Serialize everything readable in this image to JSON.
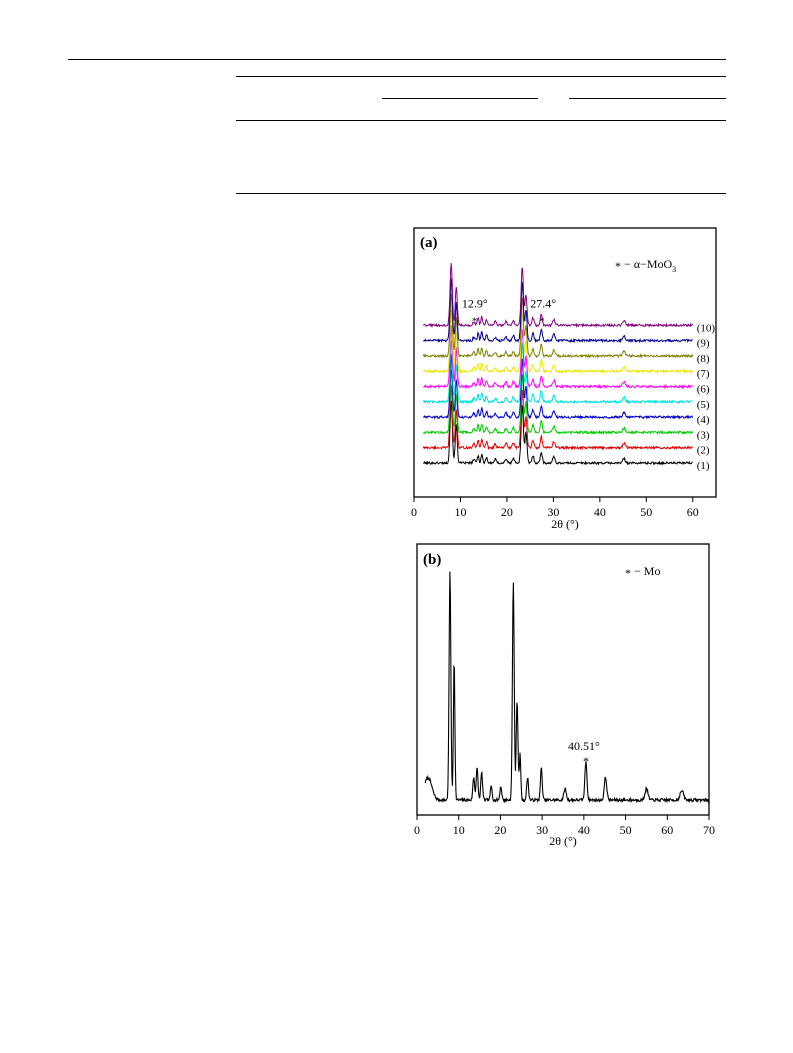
{
  "page": {
    "background": "#ffffff"
  },
  "chart_data": [
    {
      "type": "line",
      "panel_label": "(a)",
      "title": "",
      "xlabel": "2θ (°)",
      "ylabel": "",
      "xlim": [
        0,
        65
      ],
      "x_ticks": [
        0,
        10,
        20,
        30,
        40,
        50,
        60
      ],
      "grid": false,
      "legend": {
        "marker": "*",
        "text": "− α−MoO",
        "subscript": "3",
        "placement": "top-right"
      },
      "annotations": [
        {
          "text": "12.9°",
          "x": 12.9,
          "series": "(10)"
        },
        {
          "text": "27.4°",
          "x": 27.4,
          "series": "(10)"
        }
      ],
      "peaks": [
        {
          "x": 8.0,
          "h": 1.0,
          "w": 0.35
        },
        {
          "x": 9.1,
          "h": 0.62,
          "w": 0.3
        },
        {
          "x": 12.9,
          "h": 0.06,
          "w": 0.3
        },
        {
          "x": 13.8,
          "h": 0.12,
          "w": 0.25
        },
        {
          "x": 14.6,
          "h": 0.14,
          "w": 0.25
        },
        {
          "x": 15.6,
          "h": 0.1,
          "w": 0.25
        },
        {
          "x": 17.5,
          "h": 0.06,
          "w": 0.3
        },
        {
          "x": 19.8,
          "h": 0.07,
          "w": 0.3
        },
        {
          "x": 21.4,
          "h": 0.08,
          "w": 0.3
        },
        {
          "x": 23.3,
          "h": 0.95,
          "w": 0.35
        },
        {
          "x": 24.1,
          "h": 0.5,
          "w": 0.3
        },
        {
          "x": 25.6,
          "h": 0.12,
          "w": 0.3
        },
        {
          "x": 27.4,
          "h": 0.18,
          "w": 0.3
        },
        {
          "x": 30.1,
          "h": 0.1,
          "w": 0.35
        },
        {
          "x": 45.2,
          "h": 0.07,
          "w": 0.4
        }
      ],
      "series": [
        {
          "name": "(1)",
          "color": "#000000"
        },
        {
          "name": "(2)",
          "color": "#e00000"
        },
        {
          "name": "(3)",
          "color": "#00cc00"
        },
        {
          "name": "(4)",
          "color": "#0000c8"
        },
        {
          "name": "(5)",
          "color": "#00e0e0"
        },
        {
          "name": "(6)",
          "color": "#ff00ff"
        },
        {
          "name": "(7)",
          "color": "#e8e800"
        },
        {
          "name": "(8)",
          "color": "#808000"
        },
        {
          "name": "(9)",
          "color": "#000090"
        },
        {
          "name": "(10)",
          "color": "#800080"
        }
      ]
    },
    {
      "type": "line",
      "panel_label": "(b)",
      "title": "",
      "xlabel": "2θ (°)",
      "ylabel": "",
      "xlim": [
        0,
        70
      ],
      "x_ticks": [
        0,
        10,
        20,
        30,
        40,
        50,
        60,
        70
      ],
      "grid": false,
      "legend": {
        "marker": "*",
        "text": "− Mo",
        "placement": "top-right"
      },
      "annotations": [
        {
          "text": "40.51°",
          "x": 40.51
        }
      ],
      "peaks": [
        {
          "x": 2.8,
          "h": 0.08,
          "w": 1.2
        },
        {
          "x": 7.9,
          "h": 1.0,
          "w": 0.3
        },
        {
          "x": 8.9,
          "h": 0.62,
          "w": 0.25
        },
        {
          "x": 13.6,
          "h": 0.1,
          "w": 0.3
        },
        {
          "x": 14.4,
          "h": 0.14,
          "w": 0.3
        },
        {
          "x": 15.5,
          "h": 0.12,
          "w": 0.3
        },
        {
          "x": 17.8,
          "h": 0.06,
          "w": 0.3
        },
        {
          "x": 20.1,
          "h": 0.06,
          "w": 0.3
        },
        {
          "x": 23.1,
          "h": 0.96,
          "w": 0.3
        },
        {
          "x": 24.0,
          "h": 0.44,
          "w": 0.3
        },
        {
          "x": 24.7,
          "h": 0.2,
          "w": 0.25
        },
        {
          "x": 26.5,
          "h": 0.1,
          "w": 0.3
        },
        {
          "x": 29.8,
          "h": 0.14,
          "w": 0.3
        },
        {
          "x": 35.5,
          "h": 0.05,
          "w": 0.4
        },
        {
          "x": 40.5,
          "h": 0.17,
          "w": 0.35
        },
        {
          "x": 45.2,
          "h": 0.1,
          "w": 0.4
        },
        {
          "x": 55.0,
          "h": 0.05,
          "w": 0.5
        },
        {
          "x": 63.5,
          "h": 0.04,
          "w": 0.6
        }
      ],
      "series": [
        {
          "name": "",
          "color": "#000000"
        }
      ]
    }
  ]
}
